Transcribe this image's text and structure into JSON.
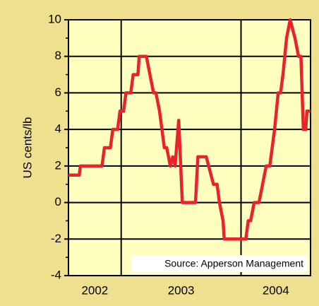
{
  "chart_data": {
    "type": "line",
    "y_label": "US cents/lb",
    "annotation": "Source: Apperson Management",
    "x": [
      2002.56,
      2002.65,
      2002.66,
      2002.84,
      2002.86,
      2002.91,
      2002.93,
      2002.97,
      2002.99,
      2003.02,
      2003.04,
      2003.08,
      2003.1,
      2003.14,
      2003.15,
      2003.21,
      2003.24,
      2003.27,
      2003.29,
      2003.32,
      2003.36,
      2003.38,
      2003.41,
      2003.43,
      2003.45,
      2003.48,
      2003.51,
      2003.62,
      2003.64,
      2003.71,
      2003.73,
      2003.75,
      2003.77,
      2003.8,
      2003.82,
      2003.85,
      2003.86,
      2004.04,
      2004.06,
      2004.08,
      2004.11,
      2004.15,
      2004.18,
      2004.21,
      2004.24,
      2004.26,
      2004.28,
      2004.31,
      2004.33,
      2004.35,
      2004.38,
      2004.41,
      2004.45,
      2004.48,
      2004.5,
      2004.52,
      2004.54,
      2004.55,
      2004.58
    ],
    "values": [
      1.5,
      1.5,
      2,
      2,
      3,
      3,
      4,
      4,
      5,
      5,
      6,
      6,
      7,
      7,
      8,
      8,
      7,
      6,
      6,
      5,
      3,
      3,
      2,
      2.5,
      2,
      4.5,
      0,
      0,
      2.5,
      2.5,
      2,
      1.5,
      1,
      1,
      0,
      -1,
      -2,
      -2,
      -1,
      -1,
      0,
      0,
      1,
      2,
      2,
      3,
      4,
      6,
      6,
      7,
      9,
      10,
      9,
      8,
      8,
      4,
      4,
      5,
      5
    ],
    "color": "#e8232b",
    "xlim": [
      2002.56,
      2004.58
    ],
    "xticks": [
      2002,
      2003,
      2004
    ],
    "ylim": [
      -4,
      10
    ],
    "yticks": [
      -4,
      -2,
      0,
      2,
      4,
      6,
      8,
      10
    ],
    "grid": true
  }
}
